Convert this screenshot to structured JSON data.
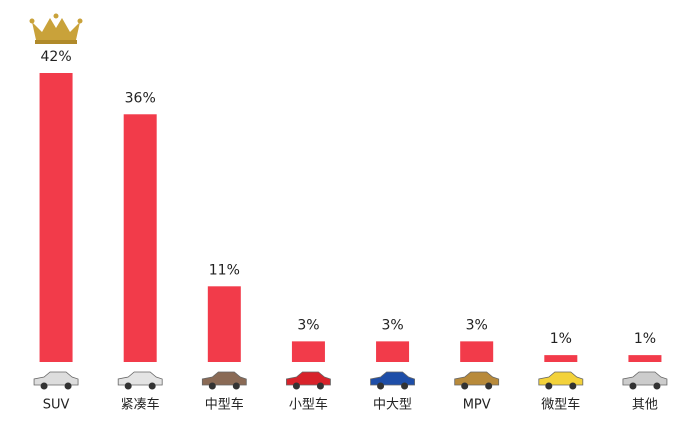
{
  "chart_data": {
    "type": "bar",
    "categories": [
      "SUV",
      "紧凑车",
      "中型车",
      "小型车",
      "中大型",
      "MPV",
      "微型车",
      "其他"
    ],
    "values": [
      42,
      36,
      11,
      3,
      3,
      3,
      1,
      1
    ],
    "value_labels": [
      "42%",
      "36%",
      "11%",
      "3%",
      "3%",
      "3%",
      "1%",
      "1%"
    ],
    "color": "#f23b4a"
  }
}
